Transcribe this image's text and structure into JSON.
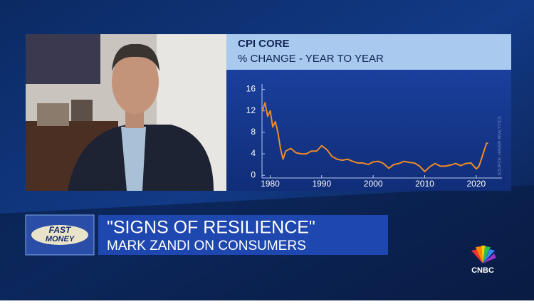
{
  "chart_data": {
    "type": "line",
    "title": "CPI CORE",
    "subtitle": "% CHANGE - YEAR TO YEAR",
    "source": "SOURCE: HAVER ANALYTICS",
    "x": [
      1978.5,
      1979,
      1979.5,
      1980,
      1980.5,
      1981,
      1981.5,
      1982,
      1982.5,
      1983,
      1984,
      1985,
      1986,
      1987,
      1988,
      1989,
      1990,
      1991,
      1992,
      1993,
      1994,
      1995,
      1996,
      1997,
      1998,
      1999,
      2000,
      2001,
      2002,
      2003,
      2004,
      2005,
      2006,
      2007,
      2008,
      2009,
      2010,
      2011,
      2012,
      2013,
      2014,
      2015,
      2016,
      2017,
      2018,
      2019,
      2020,
      2020.5,
      2021,
      2021.5,
      2022,
      2022.3
    ],
    "series": [
      {
        "color": "#f08a24",
        "values": [
          12,
          13.5,
          11,
          12,
          9,
          10,
          8,
          5,
          3,
          4.5,
          5,
          4.2,
          4,
          4,
          4.5,
          4.5,
          5.5,
          4.8,
          3.5,
          3,
          2.8,
          3,
          2.6,
          2.3,
          2.3,
          2,
          2.5,
          2.6,
          2.2,
          1.3,
          2,
          2.2,
          2.6,
          2.4,
          2.3,
          1.7,
          0.7,
          1.6,
          2.2,
          1.7,
          1.7,
          1.9,
          2.2,
          1.8,
          2.2,
          2.3,
          1.2,
          1.6,
          3,
          4.5,
          6,
          5.9
        ]
      }
    ],
    "xlim": [
      1978,
      2025
    ],
    "xticks": [
      1980,
      1990,
      2000,
      2010,
      2020
    ],
    "ylim": [
      -0.5,
      17
    ],
    "yticks": [
      0,
      4,
      8,
      12,
      16
    ],
    "grid": false
  },
  "headline": {
    "text": "\"SIGNS OF RESILIENCE\"",
    "subtext": "MARK ZANDI ON CONSUMERS"
  },
  "show_logo": {
    "line1": "FAST",
    "line2": "MONEY"
  },
  "network_logo": "CNBC"
}
